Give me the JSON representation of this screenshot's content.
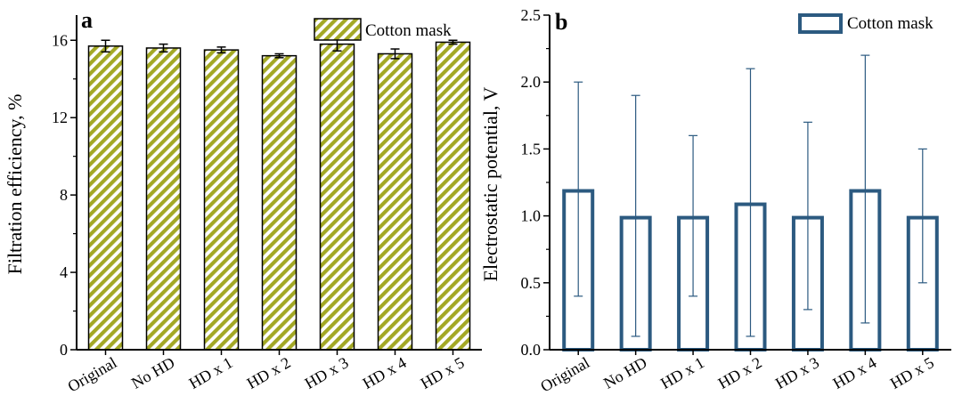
{
  "chart_data": [
    {
      "type": "bar",
      "panel_label": "a",
      "categories": [
        "Original",
        "No HD",
        "HD x 1",
        "HD x 2",
        "HD x 3",
        "HD x 4",
        "HD x 5"
      ],
      "series": [
        {
          "name": "Cotton mask",
          "values": [
            15.7,
            15.6,
            15.5,
            15.2,
            15.8,
            15.3,
            15.9
          ],
          "errors": [
            0.3,
            0.2,
            0.15,
            0.1,
            0.35,
            0.25,
            0.1
          ],
          "color": "#a3a825",
          "fill_pattern": "diagonal-stripes"
        }
      ],
      "xlabel": "",
      "ylabel": "Filtration efficiency, %",
      "ylim": [
        0,
        17.3
      ],
      "yticks": [
        0,
        4,
        8,
        12,
        16
      ],
      "legend_position": "top-right",
      "grid": false
    },
    {
      "type": "bar",
      "panel_label": "b",
      "categories": [
        "Original",
        "No HD",
        "HD x 1",
        "HD x 2",
        "HD x 3",
        "HD x 4",
        "HD x 5"
      ],
      "series": [
        {
          "name": "Cotton mask",
          "values": [
            1.2,
            1.0,
            1.0,
            1.1,
            1.0,
            1.2,
            1.0
          ],
          "errors": [
            0.8,
            0.9,
            0.6,
            1.0,
            0.7,
            1.0,
            0.5
          ],
          "color": "#2c5a80",
          "fill_pattern": "none"
        }
      ],
      "xlabel": "",
      "ylabel": "Electrostatic potential, V",
      "ylim": [
        0,
        2.5
      ],
      "yticks": [
        "0.0",
        "0.5",
        "1.0",
        "1.5",
        "2.0",
        "2.5"
      ],
      "legend_position": "top-right",
      "grid": false
    }
  ]
}
